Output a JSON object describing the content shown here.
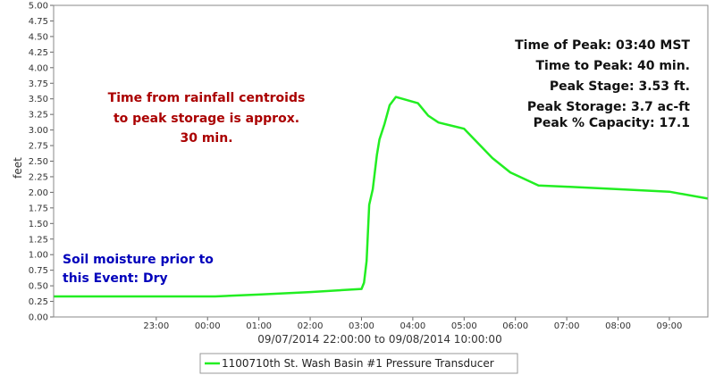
{
  "chart_data": {
    "type": "line",
    "xlabel": "09/07/2014 22:00:00 to 09/08/2014 10:00:00",
    "ylabel": "feet",
    "xlim_hours": [
      21.0,
      33.75
    ],
    "ylim": [
      0,
      5
    ],
    "y_ticks": [
      "0.00",
      "0.25",
      "0.50",
      "0.75",
      "1.00",
      "1.25",
      "1.50",
      "1.75",
      "2.00",
      "2.25",
      "2.50",
      "2.75",
      "3.00",
      "3.25",
      "3.50",
      "3.75",
      "4.00",
      "4.25",
      "4.50",
      "4.75",
      "5.00"
    ],
    "x_ticks": [
      {
        "h": 23,
        "label": "23:00"
      },
      {
        "h": 24,
        "label": "00:00"
      },
      {
        "h": 25,
        "label": "01:00"
      },
      {
        "h": 26,
        "label": "02:00"
      },
      {
        "h": 27,
        "label": "03:00"
      },
      {
        "h": 28,
        "label": "04:00"
      },
      {
        "h": 29,
        "label": "05:00"
      },
      {
        "h": 30,
        "label": "06:00"
      },
      {
        "h": 31,
        "label": "07:00"
      },
      {
        "h": 32,
        "label": "08:00"
      },
      {
        "h": 33,
        "label": "09:00"
      }
    ],
    "grid": false,
    "legend_position": "bottom",
    "series": [
      {
        "name": "1100710th St. Wash Basin #1 Pressure Transducer",
        "color": "#22ee22",
        "points": [
          [
            21.0,
            0.33
          ],
          [
            22.0,
            0.33
          ],
          [
            23.0,
            0.33
          ],
          [
            24.15,
            0.33
          ],
          [
            25.0,
            0.36
          ],
          [
            26.0,
            0.4
          ],
          [
            27.0,
            0.45
          ],
          [
            27.05,
            0.55
          ],
          [
            27.1,
            0.9
          ],
          [
            27.15,
            1.8
          ],
          [
            27.22,
            2.05
          ],
          [
            27.3,
            2.6
          ],
          [
            27.35,
            2.85
          ],
          [
            27.45,
            3.1
          ],
          [
            27.55,
            3.4
          ],
          [
            27.67,
            3.53
          ],
          [
            28.1,
            3.43
          ],
          [
            28.3,
            3.23
          ],
          [
            28.5,
            3.12
          ],
          [
            29.0,
            3.02
          ],
          [
            29.55,
            2.55
          ],
          [
            29.9,
            2.32
          ],
          [
            30.45,
            2.11
          ],
          [
            31.0,
            2.09
          ],
          [
            32.0,
            2.05
          ],
          [
            33.0,
            2.01
          ],
          [
            33.75,
            1.9
          ]
        ]
      }
    ],
    "annotations": {
      "peak_lines": [
        "Time of Peak: 03:40 MST",
        "Time to Peak: 40 min.",
        "Peak Stage: 3.53 ft.",
        "Peak Storage: 3.7 ac-ft",
        "Peak % Capacity: 17.1"
      ],
      "centroid_lines": [
        "Time from rainfall centroids",
        "to peak storage is approx.",
        "30 min."
      ],
      "soil_lines": [
        "Soil moisture prior to",
        "this Event: Dry"
      ],
      "peak_color": "#111111",
      "centroid_color": "#aa0000",
      "soil_color": "#0000bb"
    }
  }
}
